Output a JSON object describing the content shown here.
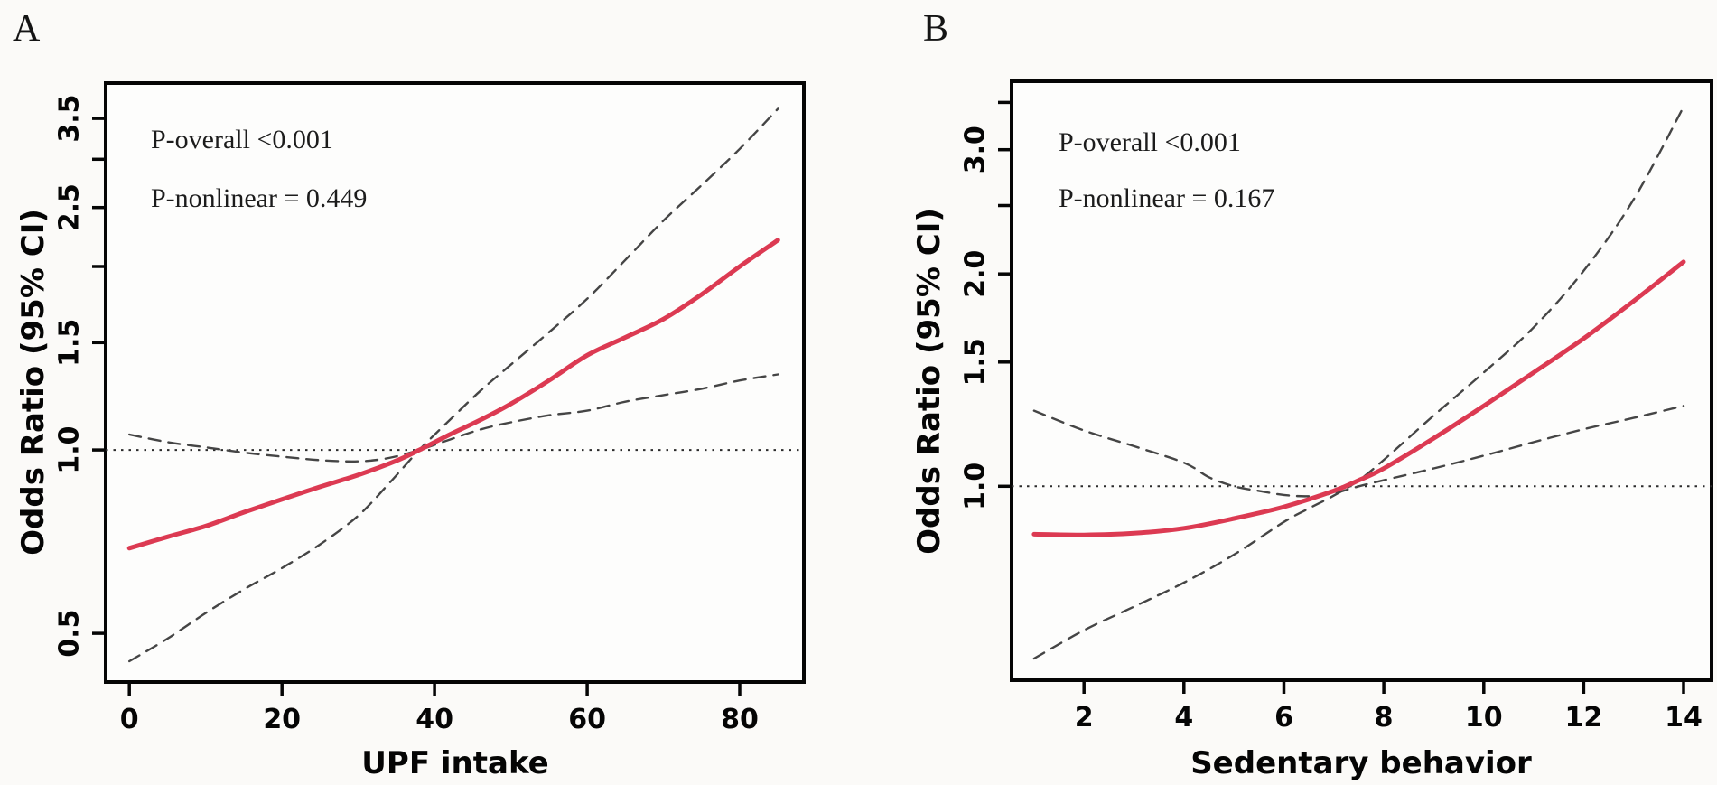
{
  "colors": {
    "estimate": "#dc3a52",
    "ci": "#454545",
    "reference": "#2b2b2b",
    "axis": "#050505",
    "plot_fill": "#fdfdfc"
  },
  "chart_data": [
    {
      "type": "line",
      "panel_label": "A",
      "xlabel": "UPF intake",
      "ylabel": "Odds Ratio (95% CI)",
      "annotations": [
        "P-overall <0.001",
        "P-nonlinear = 0.449"
      ],
      "x_ticks": [
        0,
        20,
        40,
        60,
        80
      ],
      "y_scale": "log",
      "y_ticks": [
        0.5,
        1.0,
        1.5,
        2.0,
        2.5,
        3.0,
        3.5
      ],
      "y_tick_labels": [
        "0.5",
        "1.0",
        "1.5",
        "",
        "2.5",
        "",
        "3.5"
      ],
      "xlim": [
        -3.1,
        88.4
      ],
      "ylim": [
        0.416,
        4.0
      ],
      "reference_or": 1.0,
      "reference_x": 38,
      "grid": "off",
      "legend": "none",
      "series": [
        {
          "name": "odds-ratio-estimate",
          "style": "solid",
          "color_key": "estimate",
          "x": [
            0,
            5,
            10,
            15,
            20,
            25,
            30,
            35,
            38,
            42,
            46,
            50,
            55,
            60,
            65,
            70,
            75,
            80,
            85
          ],
          "y": [
            0.69,
            0.72,
            0.75,
            0.79,
            0.83,
            0.87,
            0.91,
            0.96,
            1.0,
            1.06,
            1.12,
            1.19,
            1.3,
            1.43,
            1.53,
            1.64,
            1.8,
            2.0,
            2.21
          ]
        },
        {
          "name": "ci-bound-upper-left-lower-right",
          "style": "dashed",
          "color_key": "ci",
          "x": [
            0,
            5,
            10,
            15,
            20,
            25,
            30,
            34,
            38,
            42,
            46,
            50,
            55,
            60,
            65,
            70,
            75,
            80,
            85
          ],
          "y": [
            1.06,
            1.03,
            1.01,
            0.99,
            0.975,
            0.962,
            0.958,
            0.97,
            1.0,
            1.04,
            1.08,
            1.11,
            1.14,
            1.16,
            1.2,
            1.23,
            1.26,
            1.3,
            1.33
          ]
        },
        {
          "name": "ci-bound-lower-left-upper-right",
          "style": "dashed",
          "color_key": "ci",
          "x": [
            0,
            5,
            10,
            15,
            20,
            25,
            30,
            34,
            38,
            42,
            46,
            50,
            55,
            60,
            65,
            70,
            75,
            80,
            85
          ],
          "y": [
            0.45,
            0.49,
            0.54,
            0.59,
            0.64,
            0.7,
            0.78,
            0.88,
            1.0,
            1.12,
            1.25,
            1.38,
            1.56,
            1.77,
            2.05,
            2.38,
            2.72,
            3.12,
            3.63
          ]
        }
      ]
    },
    {
      "type": "line",
      "panel_label": "B",
      "xlabel": "Sedentary behavior",
      "ylabel": "Odds Ratio (95% CI)",
      "annotations": [
        "P-overall <0.001",
        "P-nonlinear = 0.167"
      ],
      "x_ticks": [
        2,
        4,
        6,
        8,
        10,
        12,
        14
      ],
      "y_scale": "log",
      "y_ticks": [
        1.0,
        1.5,
        2.0,
        2.5,
        3.0,
        3.5
      ],
      "y_tick_labels": [
        "1.0",
        "1.5",
        "2.0",
        "",
        "3.0",
        ""
      ],
      "xlim": [
        0.55,
        14.56
      ],
      "ylim": [
        0.531,
        3.75
      ],
      "reference_or": 1.0,
      "reference_x": 7.2,
      "grid": "off",
      "legend": "none",
      "series": [
        {
          "name": "odds-ratio-estimate",
          "style": "solid",
          "color_key": "estimate",
          "x": [
            1,
            2,
            3,
            4,
            5,
            6,
            7,
            7.5,
            8,
            9,
            10,
            11,
            12,
            13,
            14
          ],
          "y": [
            0.855,
            0.853,
            0.858,
            0.872,
            0.9,
            0.935,
            0.985,
            1.02,
            1.06,
            1.17,
            1.3,
            1.45,
            1.62,
            1.83,
            2.08
          ]
        },
        {
          "name": "ci-bound-upper-left-lower-right",
          "style": "dashed",
          "color_key": "ci",
          "x": [
            1,
            2,
            3,
            4,
            4.5,
            5,
            5.5,
            6,
            6.5,
            7,
            7.5,
            8,
            9,
            10,
            11,
            12,
            13,
            14
          ],
          "y": [
            1.28,
            1.2,
            1.14,
            1.08,
            1.03,
            1.0,
            0.985,
            0.972,
            0.968,
            0.978,
            1.0,
            1.02,
            1.06,
            1.105,
            1.155,
            1.205,
            1.25,
            1.3
          ]
        },
        {
          "name": "ci-bound-lower-left-upper-right",
          "style": "dashed",
          "color_key": "ci",
          "x": [
            1,
            2,
            3,
            4,
            5,
            6,
            6.5,
            7,
            7.5,
            8,
            9,
            10,
            11,
            12,
            13,
            14
          ],
          "y": [
            0.57,
            0.625,
            0.675,
            0.73,
            0.8,
            0.89,
            0.93,
            0.97,
            1.02,
            1.09,
            1.26,
            1.45,
            1.68,
            2.02,
            2.55,
            3.45
          ]
        }
      ]
    }
  ]
}
